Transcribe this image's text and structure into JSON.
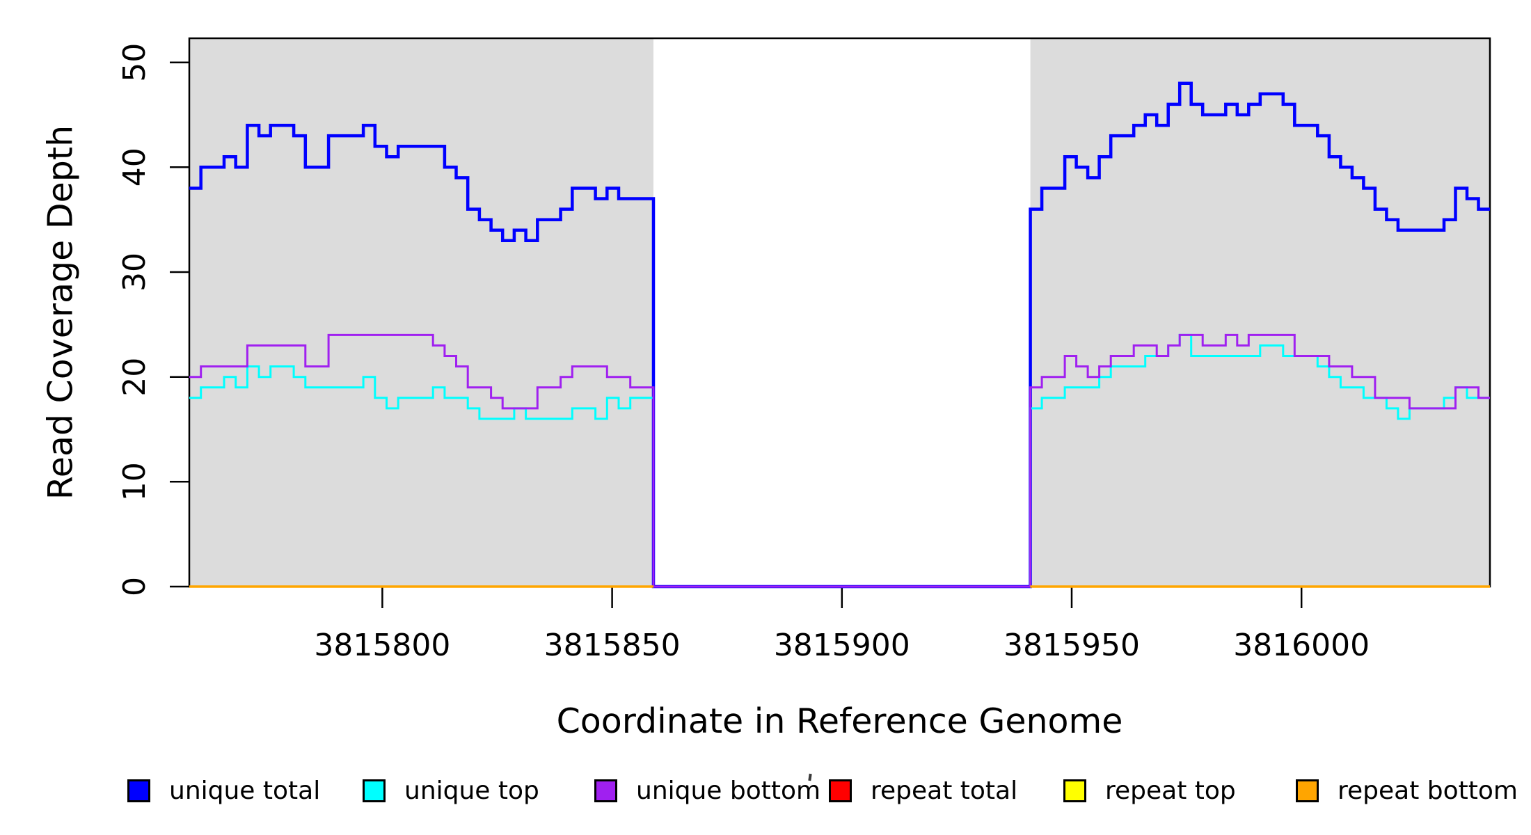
{
  "chart_data": {
    "type": "line",
    "subtype": "step-coverage-plot",
    "title": "",
    "xlabel": "Coordinate in Reference Genome",
    "ylabel": "Read Coverage Depth",
    "xlim": [
      3815758,
      3816041
    ],
    "ylim": [
      0,
      52.3
    ],
    "grid": false,
    "legend_position": "bottom-horizontal",
    "band_color": "#DCDCDC",
    "axis_color": "#000000",
    "x_axis": {
      "title": "Coordinate in Reference Genome",
      "ticks": [
        {
          "value": 3815800,
          "label": "3815800"
        },
        {
          "value": 3815850,
          "label": "3815850"
        },
        {
          "value": 3815900,
          "label": "3815900"
        },
        {
          "value": 3815950,
          "label": "3815950"
        },
        {
          "value": 3816000,
          "label": "3816000"
        }
      ]
    },
    "y_axis": {
      "title": "Read Coverage Depth",
      "ticks": [
        {
          "value": 0,
          "label": "0"
        },
        {
          "value": 10,
          "label": "10"
        },
        {
          "value": 20,
          "label": "20"
        },
        {
          "value": 30,
          "label": "30"
        },
        {
          "value": 40,
          "label": "40"
        },
        {
          "value": 50,
          "label": "50"
        }
      ]
    },
    "masked_regions": [
      {
        "x0": 3815758,
        "x1": 3815859
      },
      {
        "x0": 3815941,
        "x1": 3816041
      }
    ],
    "gap_region": {
      "x0": 3815859,
      "x1": 3815941,
      "unique_coverage": 0
    },
    "series": [
      {
        "name": "unique total",
        "key": "unique-total",
        "color": "#0000FF",
        "width": 4.5,
        "runs": [
          {
            "x0": 3815758,
            "dx": 2.525,
            "values": [
              38,
              40,
              40,
              41,
              40,
              44,
              43,
              44,
              44,
              43,
              40,
              40,
              43,
              43,
              43,
              44,
              42,
              41,
              42,
              42,
              42,
              42,
              40,
              39,
              36,
              35,
              34,
              33,
              34,
              33,
              35,
              35,
              36,
              38,
              38,
              37,
              38,
              37,
              37,
              37
            ]
          },
          {
            "x0": 3815859,
            "dx": 82,
            "values": [
              0
            ]
          },
          {
            "x0": 3815941,
            "dx": 2.5,
            "values": [
              36,
              38,
              38,
              41,
              40,
              39,
              41,
              43,
              43,
              44,
              45,
              44,
              46,
              48,
              46,
              45,
              45,
              46,
              45,
              46,
              47,
              47,
              46,
              44,
              44,
              43,
              41,
              40,
              39,
              38,
              36,
              35,
              34,
              34,
              34,
              34,
              35,
              38,
              37,
              36
            ]
          }
        ]
      },
      {
        "name": "unique top",
        "key": "unique-top",
        "color": "#00FFFF",
        "width": 3,
        "runs": [
          {
            "x0": 3815758,
            "dx": 2.525,
            "values": [
              18,
              19,
              19,
              20,
              19,
              21,
              20,
              21,
              21,
              20,
              19,
              19,
              19,
              19,
              19,
              20,
              18,
              17,
              18,
              18,
              18,
              19,
              18,
              18,
              17,
              16,
              16,
              16,
              17,
              16,
              16,
              16,
              16,
              17,
              17,
              16,
              18,
              17,
              18,
              18
            ]
          },
          {
            "x0": 3815859,
            "dx": 82,
            "values": [
              0
            ]
          },
          {
            "x0": 3815941,
            "dx": 2.5,
            "values": [
              17,
              18,
              18,
              19,
              19,
              19,
              20,
              21,
              21,
              21,
              22,
              22,
              23,
              24,
              22,
              22,
              22,
              22,
              22,
              22,
              23,
              23,
              22,
              22,
              22,
              21,
              20,
              19,
              19,
              18,
              18,
              17,
              16,
              17,
              17,
              17,
              18,
              19,
              18,
              18
            ]
          }
        ]
      },
      {
        "name": "unique bottom",
        "key": "unique-bottom",
        "color": "#A020F0",
        "width": 3,
        "runs": [
          {
            "x0": 3815758,
            "dx": 2.525,
            "values": [
              20,
              21,
              21,
              21,
              21,
              23,
              23,
              23,
              23,
              23,
              21,
              21,
              24,
              24,
              24,
              24,
              24,
              24,
              24,
              24,
              24,
              23,
              22,
              21,
              19,
              19,
              18,
              17,
              17,
              17,
              19,
              19,
              20,
              21,
              21,
              21,
              20,
              20,
              19,
              19
            ]
          },
          {
            "x0": 3815859,
            "dx": 82,
            "values": [
              0
            ]
          },
          {
            "x0": 3815941,
            "dx": 2.5,
            "values": [
              19,
              20,
              20,
              22,
              21,
              20,
              21,
              22,
              22,
              23,
              23,
              22,
              23,
              24,
              24,
              23,
              23,
              24,
              23,
              24,
              24,
              24,
              24,
              22,
              22,
              22,
              21,
              21,
              20,
              20,
              18,
              18,
              18,
              17,
              17,
              17,
              17,
              19,
              19,
              18
            ]
          }
        ]
      },
      {
        "name": "repeat total",
        "key": "repeat-total",
        "color": "#FF0000",
        "width": 3,
        "runs": [
          {
            "x0": 3815758,
            "dx": 101,
            "values": [
              0
            ]
          },
          {
            "x0": 3815941,
            "dx": 100,
            "values": [
              0
            ]
          }
        ]
      },
      {
        "name": "repeat top",
        "key": "repeat-top",
        "color": "#FFFF00",
        "width": 3,
        "runs": [
          {
            "x0": 3815758,
            "dx": 101,
            "values": [
              0
            ]
          },
          {
            "x0": 3815941,
            "dx": 100,
            "values": [
              0
            ]
          }
        ]
      },
      {
        "name": "repeat bottom",
        "key": "repeat-bottom",
        "color": "#FFA500",
        "width": 3.5,
        "runs": [
          {
            "x0": 3815758,
            "dx": 101,
            "values": [
              0
            ]
          },
          {
            "x0": 3815941,
            "dx": 100,
            "values": [
              0
            ]
          }
        ]
      }
    ],
    "legend": {
      "items": [
        {
          "label": "unique total",
          "color": "#0000FF"
        },
        {
          "label": "unique top",
          "color": "#00FFFF"
        },
        {
          "label": "unique bottom",
          "color": "#A020F0"
        },
        {
          "label": "repeat total",
          "color": "#FF0000"
        },
        {
          "label": "repeat top",
          "color": "#FFFF00"
        },
        {
          "label": "repeat bottom",
          "color": "#FFA500"
        }
      ]
    }
  }
}
